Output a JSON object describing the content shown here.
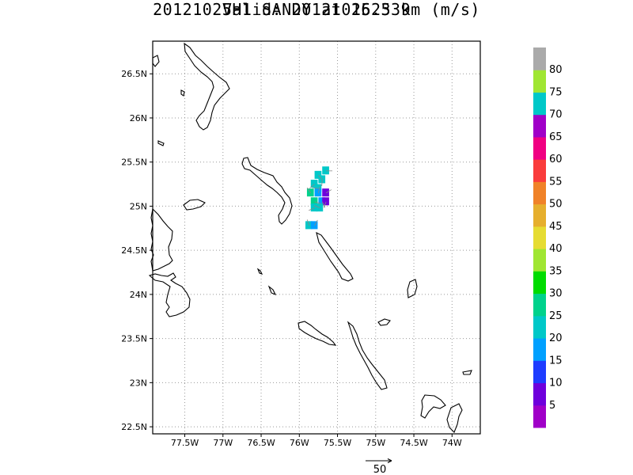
{
  "title_line1": "20121025H1 SANDY at 16.5 km (m/s)",
  "title_line2": "Valid: 201210252339",
  "map": {
    "lon_range": [
      -77.92,
      -73.63
    ],
    "lat_range": [
      22.42,
      26.87
    ],
    "lat_ticks": [
      {
        "value": 26.5,
        "label": "26.5N"
      },
      {
        "value": 26.0,
        "label": "26N"
      },
      {
        "value": 25.5,
        "label": "25.5N"
      },
      {
        "value": 25.0,
        "label": "25N"
      },
      {
        "value": 24.5,
        "label": "24.5N"
      },
      {
        "value": 24.0,
        "label": "24N"
      },
      {
        "value": 23.5,
        "label": "23.5N"
      },
      {
        "value": 23.0,
        "label": "23N"
      },
      {
        "value": 22.5,
        "label": "22.5N"
      }
    ],
    "lon_ticks": [
      {
        "value": -77.5,
        "label": "77.5W"
      },
      {
        "value": -77.0,
        "label": "77W"
      },
      {
        "value": -76.5,
        "label": "76.5W"
      },
      {
        "value": -76.0,
        "label": "76W"
      },
      {
        "value": -75.5,
        "label": "75.5W"
      },
      {
        "value": -75.0,
        "label": "75W"
      },
      {
        "value": -74.5,
        "label": "74.5W"
      },
      {
        "value": -74.0,
        "label": "74W"
      }
    ],
    "grid": "dotted"
  },
  "wind_cells": [
    {
      "lon": -75.65,
      "lat": 25.4,
      "speed": 22
    },
    {
      "lon": -75.75,
      "lat": 25.35,
      "speed": 24
    },
    {
      "lon": -75.7,
      "lat": 25.3,
      "speed": 21
    },
    {
      "lon": -75.8,
      "lat": 25.25,
      "speed": 23
    },
    {
      "lon": -75.75,
      "lat": 25.2,
      "speed": 20
    },
    {
      "lon": -75.85,
      "lat": 25.15,
      "speed": 26
    },
    {
      "lon": -75.75,
      "lat": 25.15,
      "speed": 17
    },
    {
      "lon": -75.65,
      "lat": 25.15,
      "speed": 9
    },
    {
      "lon": -75.8,
      "lat": 25.05,
      "speed": 25
    },
    {
      "lon": -75.7,
      "lat": 25.05,
      "speed": 18
    },
    {
      "lon": -75.65,
      "lat": 25.05,
      "speed": 8
    },
    {
      "lon": -75.8,
      "lat": 24.98,
      "speed": 24
    },
    {
      "lon": -75.73,
      "lat": 24.98,
      "speed": 20
    },
    {
      "lon": -75.87,
      "lat": 24.78,
      "speed": 22
    },
    {
      "lon": -75.8,
      "lat": 24.78,
      "speed": 15
    }
  ],
  "colorbar": {
    "colors": [
      "#a000c8",
      "#6e00dc",
      "#1e3cff",
      "#00a0ff",
      "#00c8c8",
      "#00d28c",
      "#00dc00",
      "#a0e632",
      "#e6dc32",
      "#e6af2d",
      "#f08228",
      "#fa3c3c",
      "#f00082",
      "#a000c8",
      "#00c8c8",
      "#a0e632",
      "#aaaaaa"
    ],
    "labels": [
      "5",
      "10",
      "15",
      "20",
      "25",
      "30",
      "35",
      "40",
      "45",
      "50",
      "55",
      "60",
      "65",
      "70",
      "75",
      "80"
    ]
  },
  "reference_vector": {
    "label": "50",
    "speed": 50
  }
}
